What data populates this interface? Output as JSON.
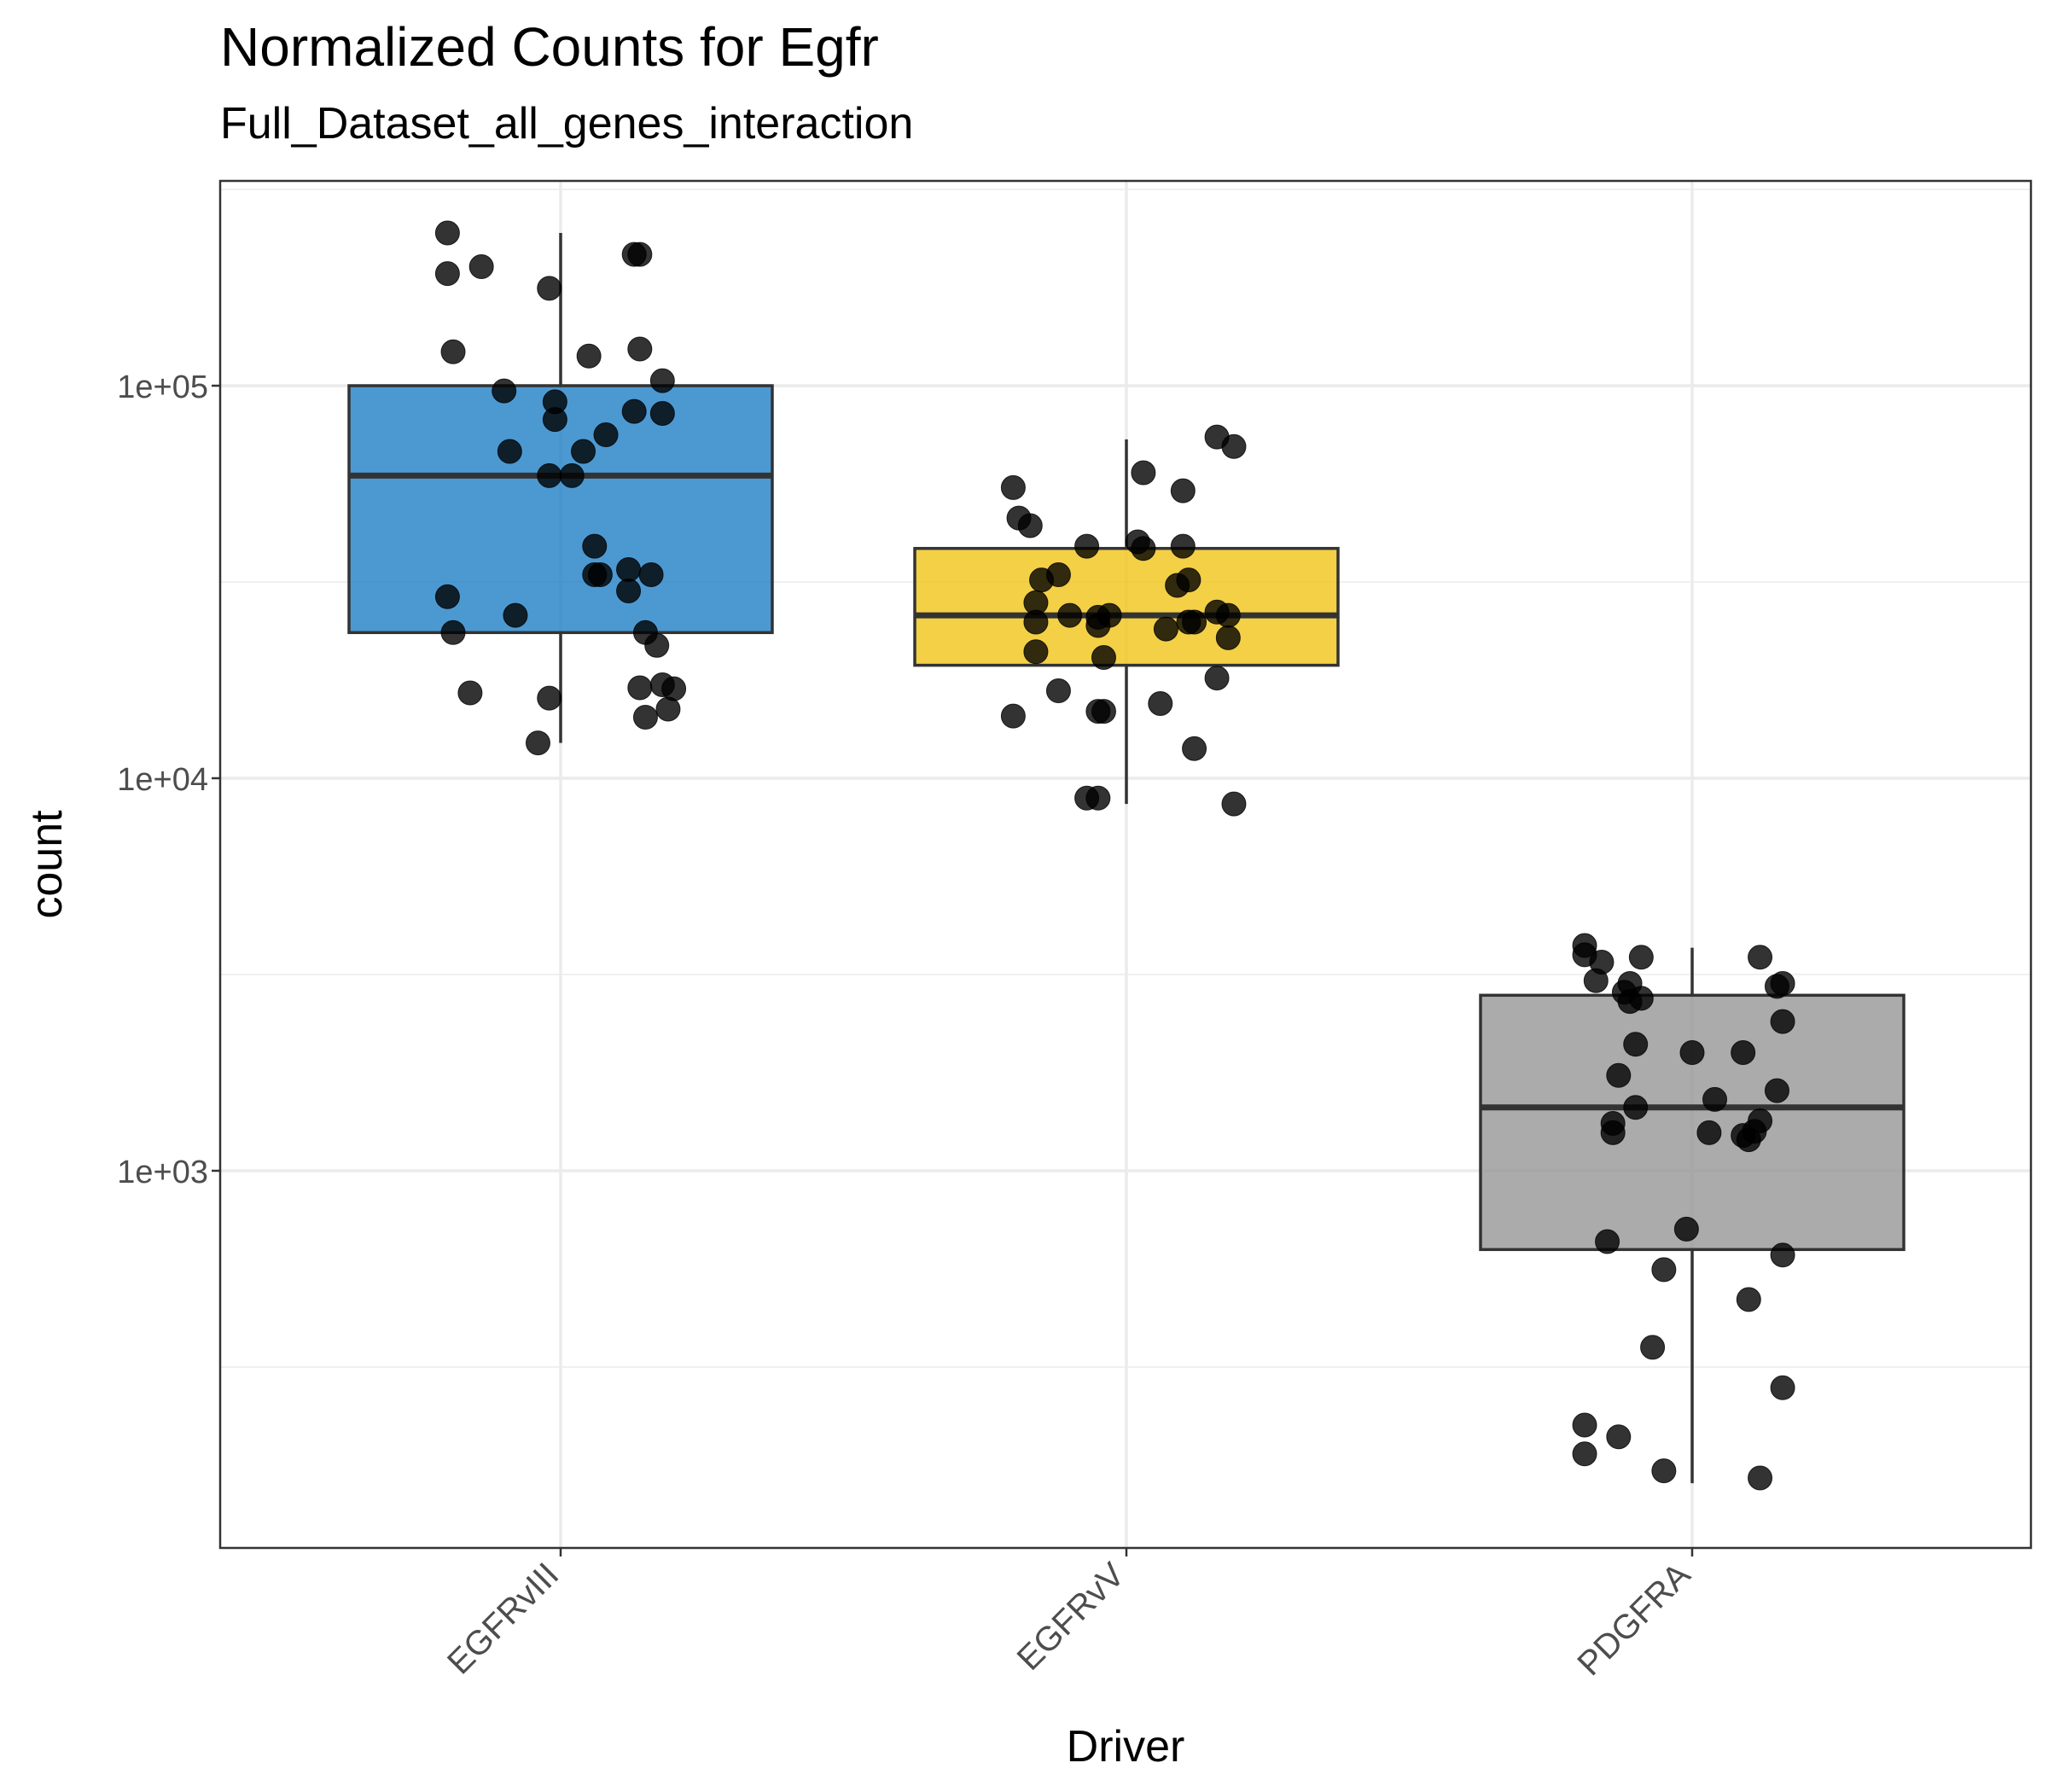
{
  "chart_data": {
    "type": "box",
    "title": "Normalized Counts for Egfr",
    "subtitle": "Full_Dataset_all_genes_interaction",
    "xlabel": "Driver",
    "ylabel": "count",
    "y_scale": "log10",
    "ylim": [
      150,
      280000
    ],
    "y_ticks": [
      {
        "value": 1000,
        "label": "1e+03"
      },
      {
        "value": 10000,
        "label": "1e+04"
      },
      {
        "value": 100000,
        "label": "1e+05"
      }
    ],
    "grid": true,
    "categories": [
      "EGFRvIII",
      "EGFRvV",
      "PDGFRA"
    ],
    "colors": {
      "EGFRvIII": "#1f7fc7",
      "EGFRvV": "#f0c418",
      "PDGFRA": "#969696"
    },
    "boxes": [
      {
        "category": "EGFRvIII",
        "lower_whisker": 12300,
        "q1": 23500,
        "median": 59000,
        "q3": 100000,
        "upper_whisker": 245000
      },
      {
        "category": "EGFRvV",
        "lower_whisker": 8600,
        "q1": 19400,
        "median": 26000,
        "q3": 38500,
        "upper_whisker": 73000
      },
      {
        "category": "PDGFRA",
        "lower_whisker": 160,
        "q1": 630,
        "median": 1450,
        "q3": 2800,
        "upper_whisker": 3700
      }
    ],
    "points": {
      "EGFRvIII": [
        {
          "x": -0.2,
          "y": 245000
        },
        {
          "x": -0.2,
          "y": 193000
        },
        {
          "x": -0.14,
          "y": 201000
        },
        {
          "x": -0.02,
          "y": 177000
        },
        {
          "x": 0.13,
          "y": 216000
        },
        {
          "x": 0.14,
          "y": 216000
        },
        {
          "x": -0.19,
          "y": 122000
        },
        {
          "x": 0.05,
          "y": 119000
        },
        {
          "x": 0.14,
          "y": 124000
        },
        {
          "x": 0.18,
          "y": 103000
        },
        {
          "x": -0.1,
          "y": 97000
        },
        {
          "x": -0.01,
          "y": 91000
        },
        {
          "x": -0.01,
          "y": 82000
        },
        {
          "x": 0.13,
          "y": 86000
        },
        {
          "x": 0.18,
          "y": 85000
        },
        {
          "x": 0.08,
          "y": 75000
        },
        {
          "x": -0.09,
          "y": 68000
        },
        {
          "x": 0.04,
          "y": 68000
        },
        {
          "x": -0.02,
          "y": 59000
        },
        {
          "x": 0.02,
          "y": 59000
        },
        {
          "x": 0.06,
          "y": 39000
        },
        {
          "x": 0.07,
          "y": 33000
        },
        {
          "x": 0.06,
          "y": 33000
        },
        {
          "x": 0.12,
          "y": 34000
        },
        {
          "x": 0.16,
          "y": 33000
        },
        {
          "x": 0.12,
          "y": 30000
        },
        {
          "x": -0.2,
          "y": 29000
        },
        {
          "x": -0.08,
          "y": 26000
        },
        {
          "x": -0.19,
          "y": 23500
        },
        {
          "x": 0.15,
          "y": 23500
        },
        {
          "x": 0.17,
          "y": 21800
        },
        {
          "x": -0.16,
          "y": 16500
        },
        {
          "x": -0.02,
          "y": 16000
        },
        {
          "x": 0.14,
          "y": 17000
        },
        {
          "x": 0.18,
          "y": 17300
        },
        {
          "x": 0.2,
          "y": 16900
        },
        {
          "x": 0.15,
          "y": 14300
        },
        {
          "x": 0.19,
          "y": 15000
        },
        {
          "x": -0.04,
          "y": 12300
        }
      ],
      "EGFRvV": [
        {
          "x": 0.16,
          "y": 74000
        },
        {
          "x": 0.19,
          "y": 70000
        },
        {
          "x": 0.03,
          "y": 60000
        },
        {
          "x": -0.2,
          "y": 55000
        },
        {
          "x": 0.1,
          "y": 54000
        },
        {
          "x": -0.19,
          "y": 46000
        },
        {
          "x": -0.17,
          "y": 44000
        },
        {
          "x": -0.07,
          "y": 39000
        },
        {
          "x": 0.02,
          "y": 40000
        },
        {
          "x": 0.03,
          "y": 38500
        },
        {
          "x": 0.1,
          "y": 39000
        },
        {
          "x": -0.12,
          "y": 33000
        },
        {
          "x": -0.15,
          "y": 32000
        },
        {
          "x": 0.09,
          "y": 31000
        },
        {
          "x": 0.11,
          "y": 32000
        },
        {
          "x": -0.16,
          "y": 28000
        },
        {
          "x": -0.1,
          "y": 26000
        },
        {
          "x": -0.05,
          "y": 25700
        },
        {
          "x": -0.03,
          "y": 26000
        },
        {
          "x": -0.05,
          "y": 24500
        },
        {
          "x": -0.16,
          "y": 25000
        },
        {
          "x": 0.07,
          "y": 24000
        },
        {
          "x": 0.11,
          "y": 25000
        },
        {
          "x": 0.12,
          "y": 25000
        },
        {
          "x": 0.16,
          "y": 26500
        },
        {
          "x": 0.18,
          "y": 26000
        },
        {
          "x": 0.18,
          "y": 22800
        },
        {
          "x": -0.16,
          "y": 21000
        },
        {
          "x": -0.04,
          "y": 20300
        },
        {
          "x": 0.16,
          "y": 18000
        },
        {
          "x": -0.12,
          "y": 16700
        },
        {
          "x": 0.06,
          "y": 15500
        },
        {
          "x": -0.2,
          "y": 14400
        },
        {
          "x": -0.04,
          "y": 14800
        },
        {
          "x": -0.05,
          "y": 14800
        },
        {
          "x": 0.12,
          "y": 11900
        },
        {
          "x": -0.07,
          "y": 8900
        },
        {
          "x": -0.05,
          "y": 8900
        },
        {
          "x": 0.19,
          "y": 8600
        }
      ],
      "PDGFRA": [
        {
          "x": -0.19,
          "y": 3750
        },
        {
          "x": -0.19,
          "y": 3550
        },
        {
          "x": -0.16,
          "y": 3400
        },
        {
          "x": -0.09,
          "y": 3500
        },
        {
          "x": 0.12,
          "y": 3500
        },
        {
          "x": -0.17,
          "y": 3050
        },
        {
          "x": -0.12,
          "y": 2850
        },
        {
          "x": -0.11,
          "y": 3000
        },
        {
          "x": 0.15,
          "y": 2950
        },
        {
          "x": 0.16,
          "y": 3000
        },
        {
          "x": -0.11,
          "y": 2700
        },
        {
          "x": -0.09,
          "y": 2750
        },
        {
          "x": 0.16,
          "y": 2400
        },
        {
          "x": -0.1,
          "y": 2100
        },
        {
          "x": 0.0,
          "y": 2000
        },
        {
          "x": 0.09,
          "y": 2000
        },
        {
          "x": -0.13,
          "y": 1750
        },
        {
          "x": 0.15,
          "y": 1600
        },
        {
          "x": -0.1,
          "y": 1450
        },
        {
          "x": 0.04,
          "y": 1520
        },
        {
          "x": -0.14,
          "y": 1320
        },
        {
          "x": -0.14,
          "y": 1250
        },
        {
          "x": 0.03,
          "y": 1250
        },
        {
          "x": 0.09,
          "y": 1230
        },
        {
          "x": 0.11,
          "y": 1260
        },
        {
          "x": 0.12,
          "y": 1340
        },
        {
          "x": 0.1,
          "y": 1200
        },
        {
          "x": -0.15,
          "y": 660
        },
        {
          "x": -0.01,
          "y": 710
        },
        {
          "x": 0.16,
          "y": 610
        },
        {
          "x": -0.05,
          "y": 560
        },
        {
          "x": 0.1,
          "y": 470
        },
        {
          "x": -0.07,
          "y": 355
        },
        {
          "x": 0.16,
          "y": 280
        },
        {
          "x": -0.19,
          "y": 225
        },
        {
          "x": -0.13,
          "y": 210
        },
        {
          "x": -0.19,
          "y": 190
        },
        {
          "x": -0.05,
          "y": 172
        },
        {
          "x": 0.12,
          "y": 165
        }
      ]
    }
  }
}
